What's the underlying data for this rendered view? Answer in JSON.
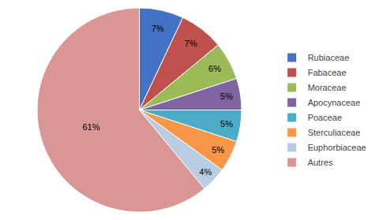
{
  "chart_data": {
    "type": "pie",
    "categories": [
      "Rubiaceae",
      "Fabaceae",
      "Moraceae",
      "Apocynaceae",
      "Poaceae",
      "Sterculiaceae",
      "Euphorbiaceae",
      "Autres"
    ],
    "values": [
      7,
      7,
      6,
      5,
      5,
      5,
      4,
      61
    ],
    "value_labels": [
      "7%",
      "7%",
      "6%",
      "5%",
      "5%",
      "5%",
      "4%",
      "61%"
    ],
    "colors": [
      "#4472C4",
      "#C0504D",
      "#9BBB59",
      "#8064A2",
      "#4BACC6",
      "#F79646",
      "#B8CCE4",
      "#D99694"
    ],
    "data_labels": true,
    "legend": "right"
  }
}
